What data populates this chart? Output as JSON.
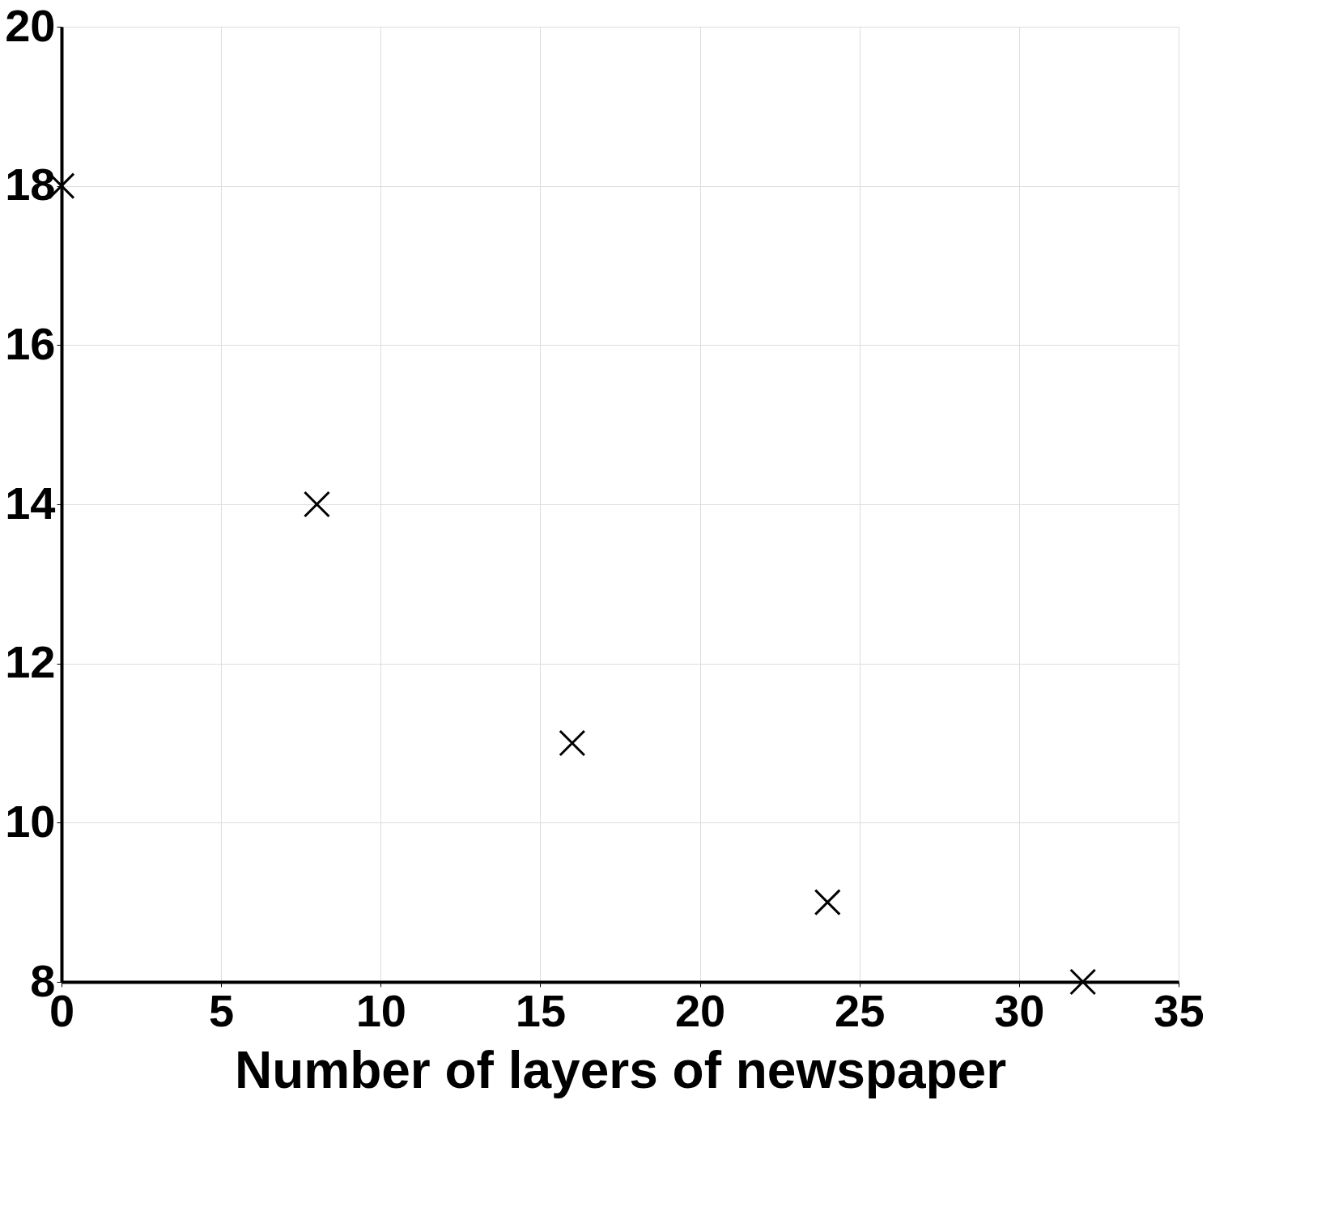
{
  "chart_data": {
    "type": "scatter",
    "xlabel": "Number of layers of newspaper",
    "x": [
      0,
      8,
      16,
      24,
      32
    ],
    "values": [
      18,
      14,
      11,
      9,
      8
    ],
    "color": "#000000",
    "xlim": [
      0,
      35
    ],
    "xticks": [
      0,
      5,
      10,
      15,
      20,
      25,
      30,
      35
    ],
    "ylim": [
      8,
      20
    ],
    "yticks": [
      8,
      10,
      12,
      14,
      16,
      18,
      20
    ],
    "grid": true,
    "marker": "cross"
  }
}
